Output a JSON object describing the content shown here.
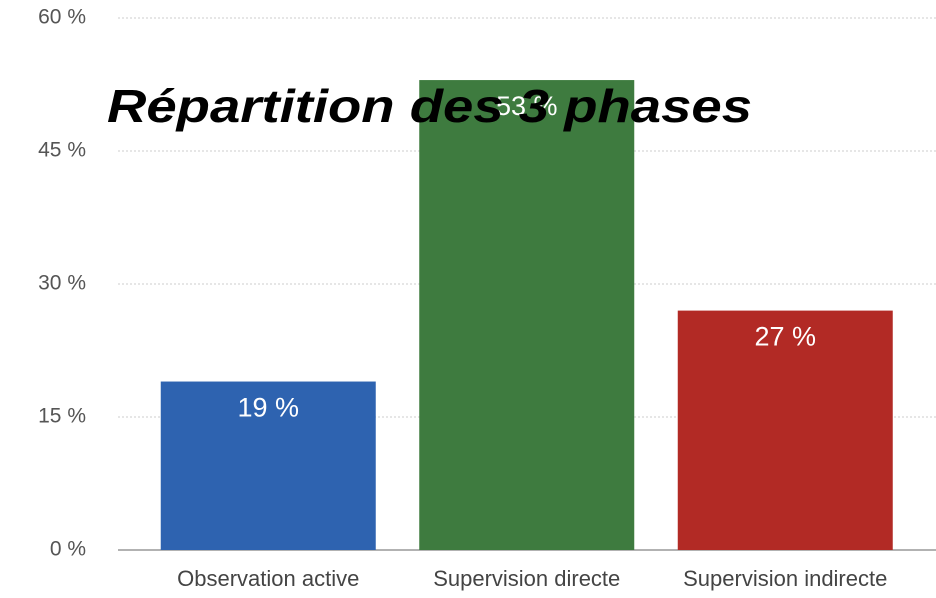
{
  "chart_data": {
    "type": "bar",
    "title": "Répartition des 3 phases",
    "categories": [
      "Observation active",
      "Supervision directe",
      "Supervision indirecte"
    ],
    "values": [
      19,
      53,
      27
    ],
    "value_labels": [
      "19 %",
      "53 %",
      "27 %"
    ],
    "colors": [
      "#2e63b0",
      "#3e7b3f",
      "#b22a25"
    ],
    "ylim": [
      0,
      60
    ],
    "yticks": [
      {
        "value": 0,
        "label": "0 %"
      },
      {
        "value": 15,
        "label": "15 %"
      },
      {
        "value": 30,
        "label": "30 %"
      },
      {
        "value": 45,
        "label": "45 %"
      },
      {
        "value": 60,
        "label": "60 %"
      }
    ],
    "grid": true
  }
}
